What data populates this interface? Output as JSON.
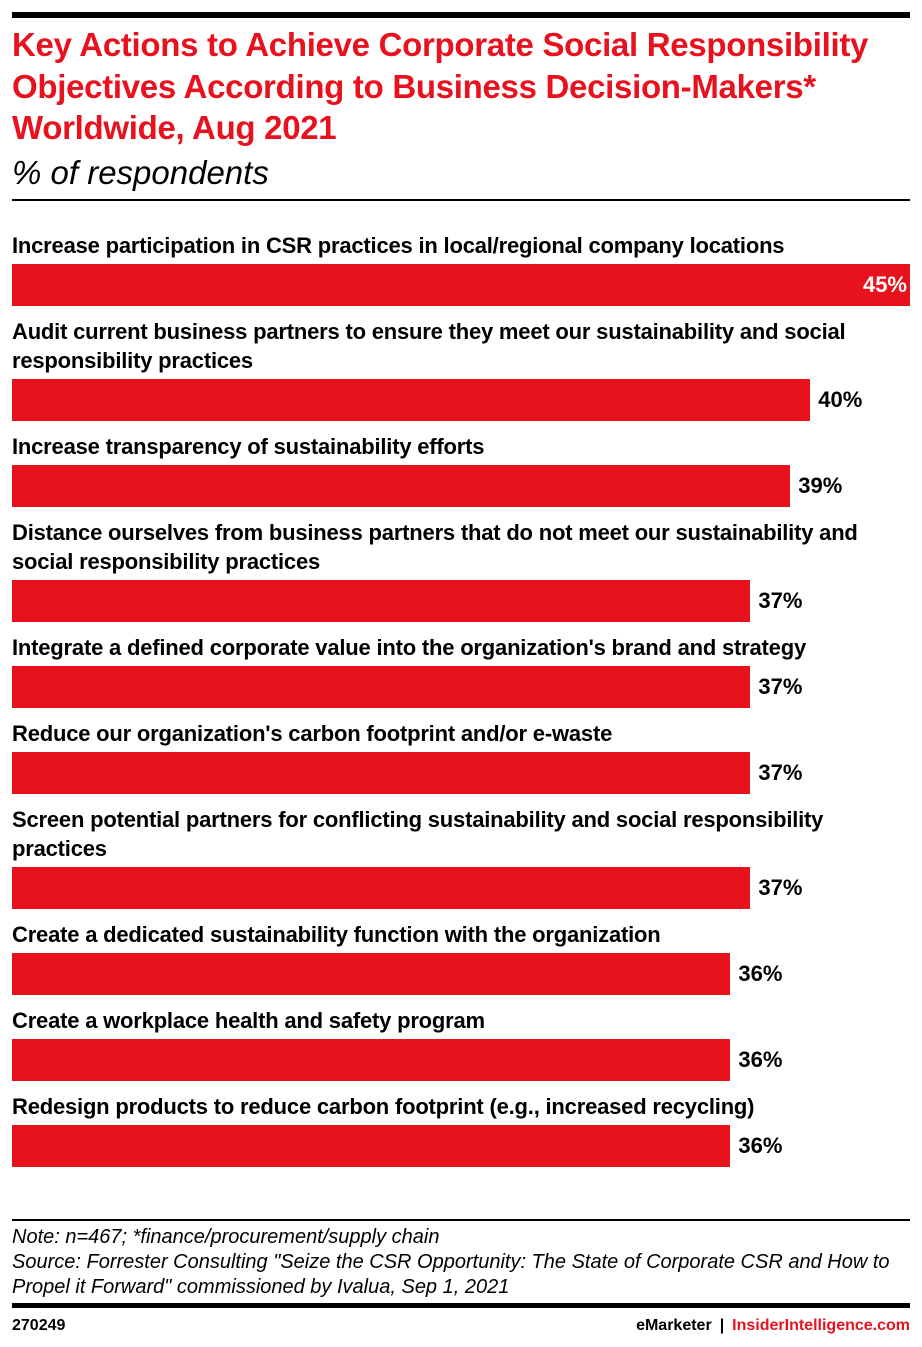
{
  "chart_data": {
    "type": "bar",
    "orientation": "horizontal",
    "title": "Key Actions to Achieve Corporate Social Responsibility Objectives According to Business Decision-Makers* Worldwide, Aug 2021",
    "subtitle": "% of respondents",
    "categories": [
      "Increase participation in CSR practices in local/regional company locations",
      "Audit current business partners to ensure they meet our sustainability and social responsibility practices",
      "Increase transparency of sustainability efforts",
      "Distance ourselves from business partners that do not meet our sustainability and social responsibility practices",
      "Integrate a defined corporate value into the organization's brand and strategy",
      "Reduce our organization's carbon footprint and/or e-waste",
      "Screen potential partners for conflicting sustainability and social responsibility practices",
      "Create a dedicated sustainability function with the organization",
      "Create a workplace health and safety program",
      "Redesign products to reduce carbon footprint (e.g., increased recycling)"
    ],
    "values": [
      45,
      40,
      39,
      37,
      37,
      37,
      37,
      36,
      36,
      36
    ],
    "value_suffix": "%",
    "xlim": [
      0,
      45
    ],
    "grid": false,
    "bar_color": "#e8121f"
  },
  "footer": {
    "note": "Note: n=467; *finance/procurement/supply chain",
    "source": "Source: Forrester Consulting \"Seize the CSR Opportunity: The State of Corporate CSR and How to Propel it Forward\" commissioned by Ivalua, Sep 1, 2021",
    "chart_id": "270249",
    "brand1": "eMarketer",
    "separator": "|",
    "brand2": "InsiderIntelligence.com"
  }
}
